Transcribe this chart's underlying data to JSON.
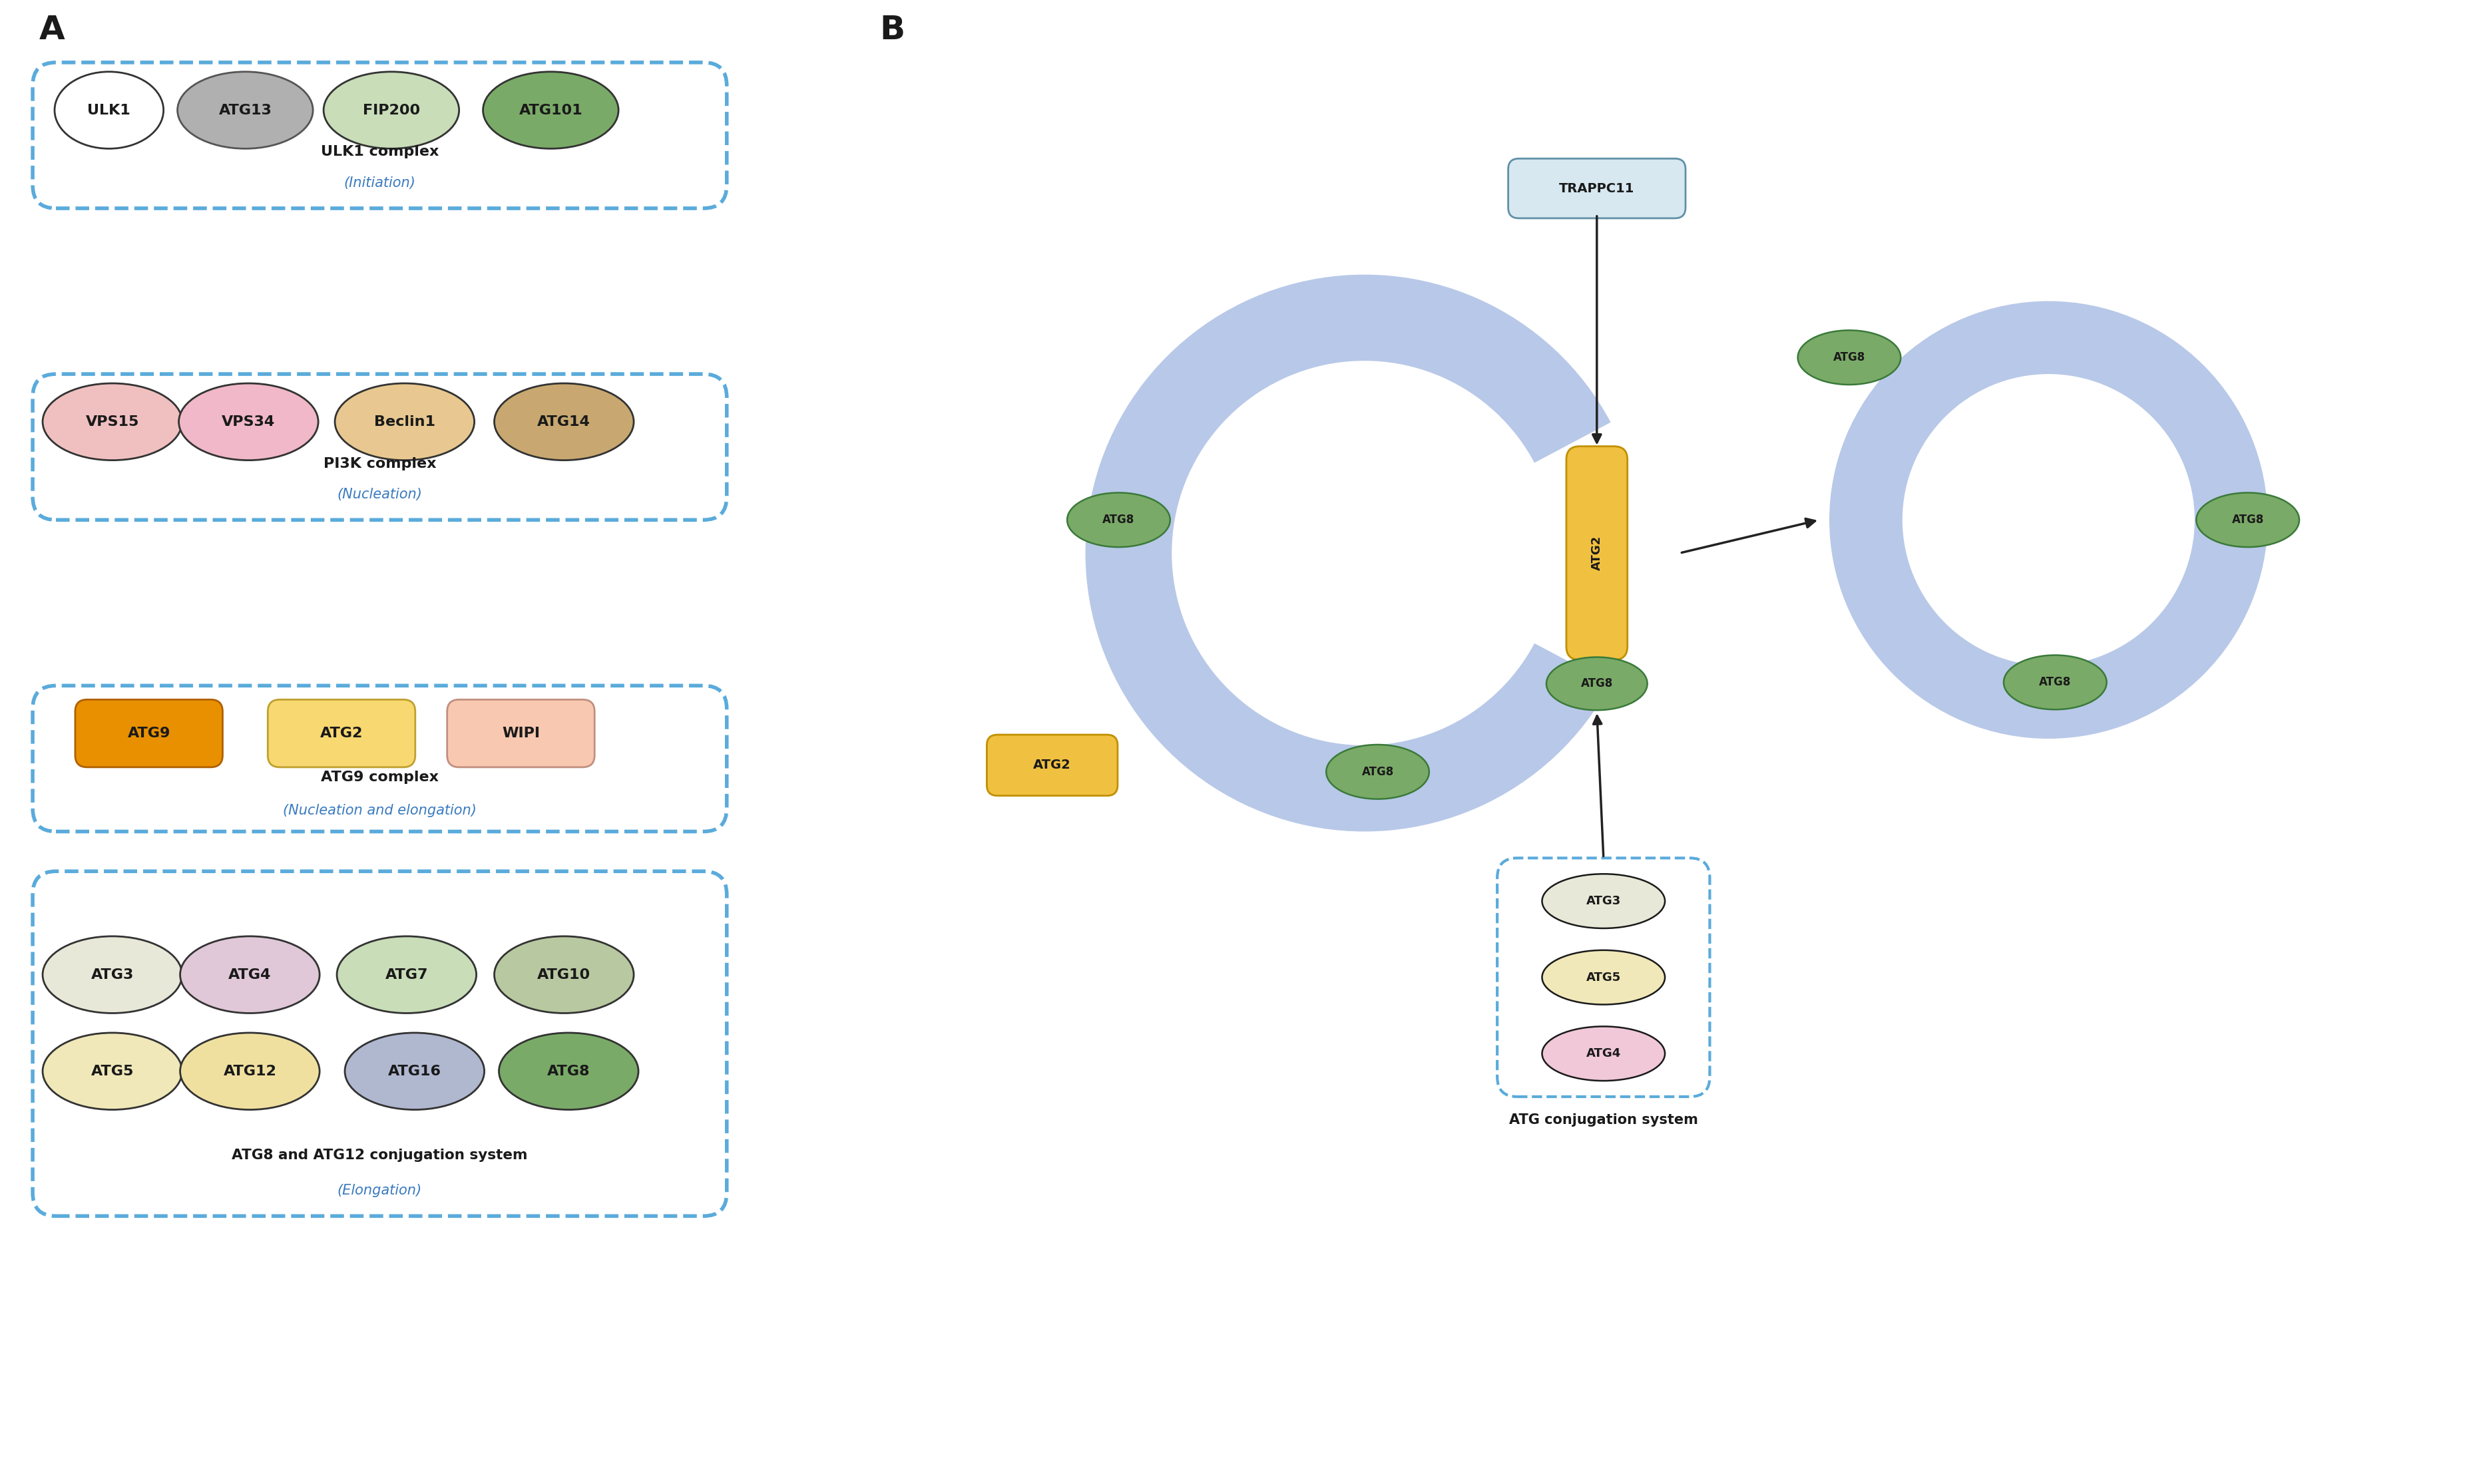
{
  "bg_color": "#ffffff",
  "panel_A_label": "A",
  "panel_B_label": "B",
  "blue_dash": "#5aabdb",
  "text_black": "#1a1a1a",
  "blue_text": "#3a7abf",
  "panel_A": {
    "complexes": [
      {
        "name": "ULK1 complex",
        "subtitle": "(Initiation)",
        "proteins": [
          {
            "label": "ULK1",
            "fill": "#ffffff",
            "edge": "#333333"
          },
          {
            "label": "ATG13",
            "fill": "#b0b0b0",
            "edge": "#555555"
          },
          {
            "label": "FIP200",
            "fill": "#c8ddb8",
            "edge": "#333333"
          },
          {
            "label": "ATG101",
            "fill": "#7aaa68",
            "edge": "#333333"
          }
        ]
      },
      {
        "name": "PI3K complex",
        "subtitle": "(Nucleation)",
        "proteins": [
          {
            "label": "VPS15",
            "fill": "#f0c0c0",
            "edge": "#333333"
          },
          {
            "label": "VPS34",
            "fill": "#f0b8c8",
            "edge": "#333333"
          },
          {
            "label": "Beclin1",
            "fill": "#e8c890",
            "edge": "#333333"
          },
          {
            "label": "ATG14",
            "fill": "#c8a870",
            "edge": "#333333"
          }
        ]
      },
      {
        "name": "ATG9 complex",
        "subtitle": "(Nucleation and elongation)",
        "proteins": [
          {
            "label": "ATG9",
            "fill": "#e89000",
            "edge": "#b06000",
            "shape": "rect"
          },
          {
            "label": "ATG2",
            "fill": "#f8d870",
            "edge": "#c0a030",
            "shape": "rect"
          },
          {
            "label": "WIPI",
            "fill": "#f8c8b0",
            "edge": "#c09080",
            "shape": "rect"
          }
        ]
      },
      {
        "name": "ATG8 and ATG12 conjugation system",
        "subtitle": "(Elongation)",
        "proteins": [
          {
            "label": "ATG3",
            "fill": "#e8e8d8",
            "edge": "#333333"
          },
          {
            "label": "ATG4",
            "fill": "#e0c8d8",
            "edge": "#333333"
          },
          {
            "label": "ATG7",
            "fill": "#c8ddb8",
            "edge": "#333333"
          },
          {
            "label": "ATG10",
            "fill": "#b8c8a0",
            "edge": "#333333"
          },
          {
            "label": "ATG5",
            "fill": "#f0e8b8",
            "edge": "#333333"
          },
          {
            "label": "ATG12",
            "fill": "#f0e0a0",
            "edge": "#333333"
          },
          {
            "label": "ATG16",
            "fill": "#b0b8d0",
            "edge": "#333333"
          },
          {
            "label": "ATG8",
            "fill": "#7aaa68",
            "edge": "#333333"
          }
        ]
      }
    ]
  },
  "panel_B": {
    "atg2_color": "#f0c040",
    "atg2_edge": "#c09000",
    "atg8_fill": "#7aaa68",
    "atg8_edge": "#3a7a3a",
    "atg8_text": "#1a1a1a",
    "phagophore_color": "#b8c8e8",
    "trappc11_fill": "#d8e8f0",
    "trappc11_edge": "#6090a8",
    "conj_box_edge": "#5aabdb",
    "atg3_fill": "#e8e8d8",
    "atg5_fill": "#f0e8b8",
    "atg4_fill": "#f0c8d8",
    "arrow_color": "#222222",
    "label_text": "ATG conjugation system"
  }
}
